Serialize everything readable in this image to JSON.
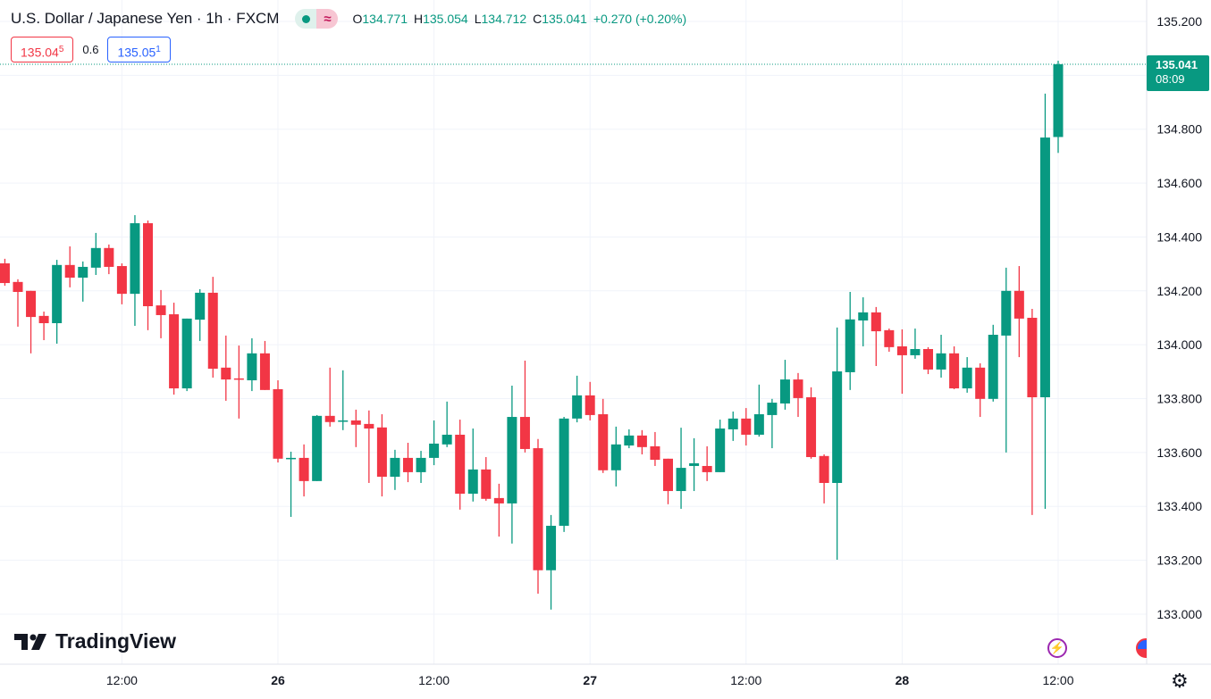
{
  "header": {
    "title": "U.S. Dollar / Japanese Yen · 1h · FXCM",
    "ohlc": [
      {
        "k": "O",
        "v": "134.771"
      },
      {
        "k": "H",
        "v": "135.054"
      },
      {
        "k": "L",
        "v": "134.712"
      },
      {
        "k": "C",
        "v": "135.041"
      }
    ],
    "change": "+0.270 (+0.20%)",
    "pill_icon_a": "market-open-dot-icon",
    "pill_icon_b": "≈"
  },
  "trade": {
    "sell_main": "135.04",
    "sell_sup": "5",
    "spread": "0.6",
    "buy_main": "135.05",
    "buy_sup": "1"
  },
  "last_price": {
    "price": "135.041",
    "countdown": "08:09"
  },
  "logo": {
    "text": "TradingView"
  },
  "colors": {
    "up": "#089981",
    "down": "#f23645",
    "grid": "#f0f3fa"
  },
  "chart_data": {
    "type": "candlestick",
    "symbol": "USDJPY",
    "interval": "1h",
    "y_ticks": [
      "135.200",
      "134.800",
      "134.600",
      "134.400",
      "134.200",
      "134.000",
      "133.800",
      "133.600",
      "133.400",
      "133.200",
      "133.000"
    ],
    "ylim": [
      132.85,
      135.28
    ],
    "x_ticks": [
      {
        "index": 9,
        "label": "12:00"
      },
      {
        "index": 21,
        "label": "26"
      },
      {
        "index": 33,
        "label": "12:00"
      },
      {
        "index": 45,
        "label": "27"
      },
      {
        "index": 57,
        "label": "12:00"
      },
      {
        "index": 69,
        "label": "28"
      },
      {
        "index": 81,
        "label": "12:00"
      }
    ],
    "columns": [
      "open",
      "high",
      "low",
      "close"
    ],
    "candles": [
      [
        134.302,
        134.319,
        134.219,
        134.229
      ],
      [
        134.233,
        134.243,
        134.067,
        134.196
      ],
      [
        134.2,
        134.2,
        133.968,
        134.103
      ],
      [
        134.107,
        134.123,
        134.017,
        134.08
      ],
      [
        134.08,
        134.315,
        134.004,
        134.296
      ],
      [
        134.296,
        134.365,
        134.213,
        134.249
      ],
      [
        134.249,
        134.309,
        134.16,
        134.289
      ],
      [
        134.286,
        134.415,
        134.259,
        134.359
      ],
      [
        134.359,
        134.372,
        134.262,
        134.289
      ],
      [
        134.292,
        134.302,
        134.15,
        134.189
      ],
      [
        134.189,
        134.481,
        134.07,
        134.451
      ],
      [
        134.451,
        134.461,
        134.054,
        134.143
      ],
      [
        134.146,
        134.203,
        134.024,
        134.11
      ],
      [
        134.113,
        134.156,
        133.815,
        133.838
      ],
      [
        133.838,
        134.097,
        133.828,
        134.097
      ],
      [
        134.093,
        134.206,
        134.014,
        134.193
      ],
      [
        134.193,
        134.252,
        133.878,
        133.911
      ],
      [
        133.915,
        134.034,
        133.792,
        133.871
      ],
      [
        133.875,
        133.997,
        133.726,
        133.871
      ],
      [
        133.868,
        134.024,
        133.828,
        133.968
      ],
      [
        133.968,
        134.014,
        133.832,
        133.832
      ],
      [
        133.835,
        133.868,
        133.563,
        133.577
      ],
      [
        133.577,
        133.603,
        133.361,
        133.58
      ],
      [
        133.58,
        133.63,
        133.437,
        133.494
      ],
      [
        133.494,
        133.739,
        133.494,
        133.736
      ],
      [
        133.736,
        133.915,
        133.696,
        133.713
      ],
      [
        133.716,
        133.905,
        133.683,
        133.719
      ],
      [
        133.719,
        133.759,
        133.62,
        133.703
      ],
      [
        133.706,
        133.756,
        133.487,
        133.689
      ],
      [
        133.693,
        133.742,
        133.437,
        133.51
      ],
      [
        133.51,
        133.61,
        133.461,
        133.58
      ],
      [
        133.58,
        133.636,
        133.49,
        133.527
      ],
      [
        133.527,
        133.606,
        133.487,
        133.58
      ],
      [
        133.58,
        133.719,
        133.553,
        133.633
      ],
      [
        133.63,
        133.789,
        133.62,
        133.666
      ],
      [
        133.666,
        133.722,
        133.388,
        133.447
      ],
      [
        133.447,
        133.689,
        133.418,
        133.537
      ],
      [
        133.537,
        133.583,
        133.421,
        133.428
      ],
      [
        133.431,
        133.484,
        133.288,
        133.411
      ],
      [
        133.411,
        133.848,
        133.262,
        133.732
      ],
      [
        133.732,
        133.941,
        133.6,
        133.613
      ],
      [
        133.616,
        133.65,
        133.076,
        133.163
      ],
      [
        133.163,
        133.368,
        133.017,
        133.328
      ],
      [
        133.328,
        133.732,
        133.305,
        133.726
      ],
      [
        133.726,
        133.885,
        133.712,
        133.812
      ],
      [
        133.812,
        133.862,
        133.719,
        133.739
      ],
      [
        133.742,
        133.799,
        133.524,
        133.534
      ],
      [
        133.534,
        133.696,
        133.474,
        133.63
      ],
      [
        133.626,
        133.686,
        133.616,
        133.663
      ],
      [
        133.663,
        133.683,
        133.593,
        133.62
      ],
      [
        133.623,
        133.676,
        133.55,
        133.573
      ],
      [
        133.577,
        133.577,
        133.408,
        133.457
      ],
      [
        133.457,
        133.692,
        133.391,
        133.543
      ],
      [
        133.55,
        133.653,
        133.457,
        133.56
      ],
      [
        133.55,
        133.623,
        133.494,
        133.527
      ],
      [
        133.527,
        133.722,
        133.527,
        133.689
      ],
      [
        133.686,
        133.752,
        133.643,
        133.726
      ],
      [
        133.726,
        133.765,
        133.626,
        133.666
      ],
      [
        133.666,
        133.852,
        133.659,
        133.742
      ],
      [
        133.739,
        133.799,
        133.616,
        133.785
      ],
      [
        133.782,
        133.944,
        133.759,
        133.871
      ],
      [
        133.871,
        133.895,
        133.732,
        133.802
      ],
      [
        133.805,
        133.842,
        133.577,
        133.583
      ],
      [
        133.587,
        133.593,
        133.411,
        133.487
      ],
      [
        133.487,
        134.064,
        133.202,
        133.901
      ],
      [
        133.898,
        134.196,
        133.832,
        134.094
      ],
      [
        134.09,
        134.176,
        133.994,
        134.12
      ],
      [
        134.12,
        134.14,
        133.921,
        134.05
      ],
      [
        134.054,
        134.06,
        133.974,
        133.991
      ],
      [
        133.994,
        134.057,
        133.818,
        133.961
      ],
      [
        133.961,
        134.06,
        133.948,
        133.984
      ],
      [
        133.984,
        133.991,
        133.891,
        133.908
      ],
      [
        133.908,
        134.037,
        133.878,
        133.968
      ],
      [
        133.968,
        133.994,
        133.835,
        133.838
      ],
      [
        133.838,
        133.954,
        133.822,
        133.915
      ],
      [
        133.915,
        133.931,
        133.732,
        133.799
      ],
      [
        133.799,
        134.074,
        133.789,
        134.037
      ],
      [
        134.034,
        134.286,
        133.6,
        134.2
      ],
      [
        134.2,
        134.292,
        133.954,
        134.097
      ],
      [
        134.1,
        134.133,
        133.368,
        133.805
      ],
      [
        133.805,
        134.932,
        133.391,
        134.769
      ],
      [
        134.771,
        135.054,
        134.712,
        135.041
      ]
    ]
  }
}
